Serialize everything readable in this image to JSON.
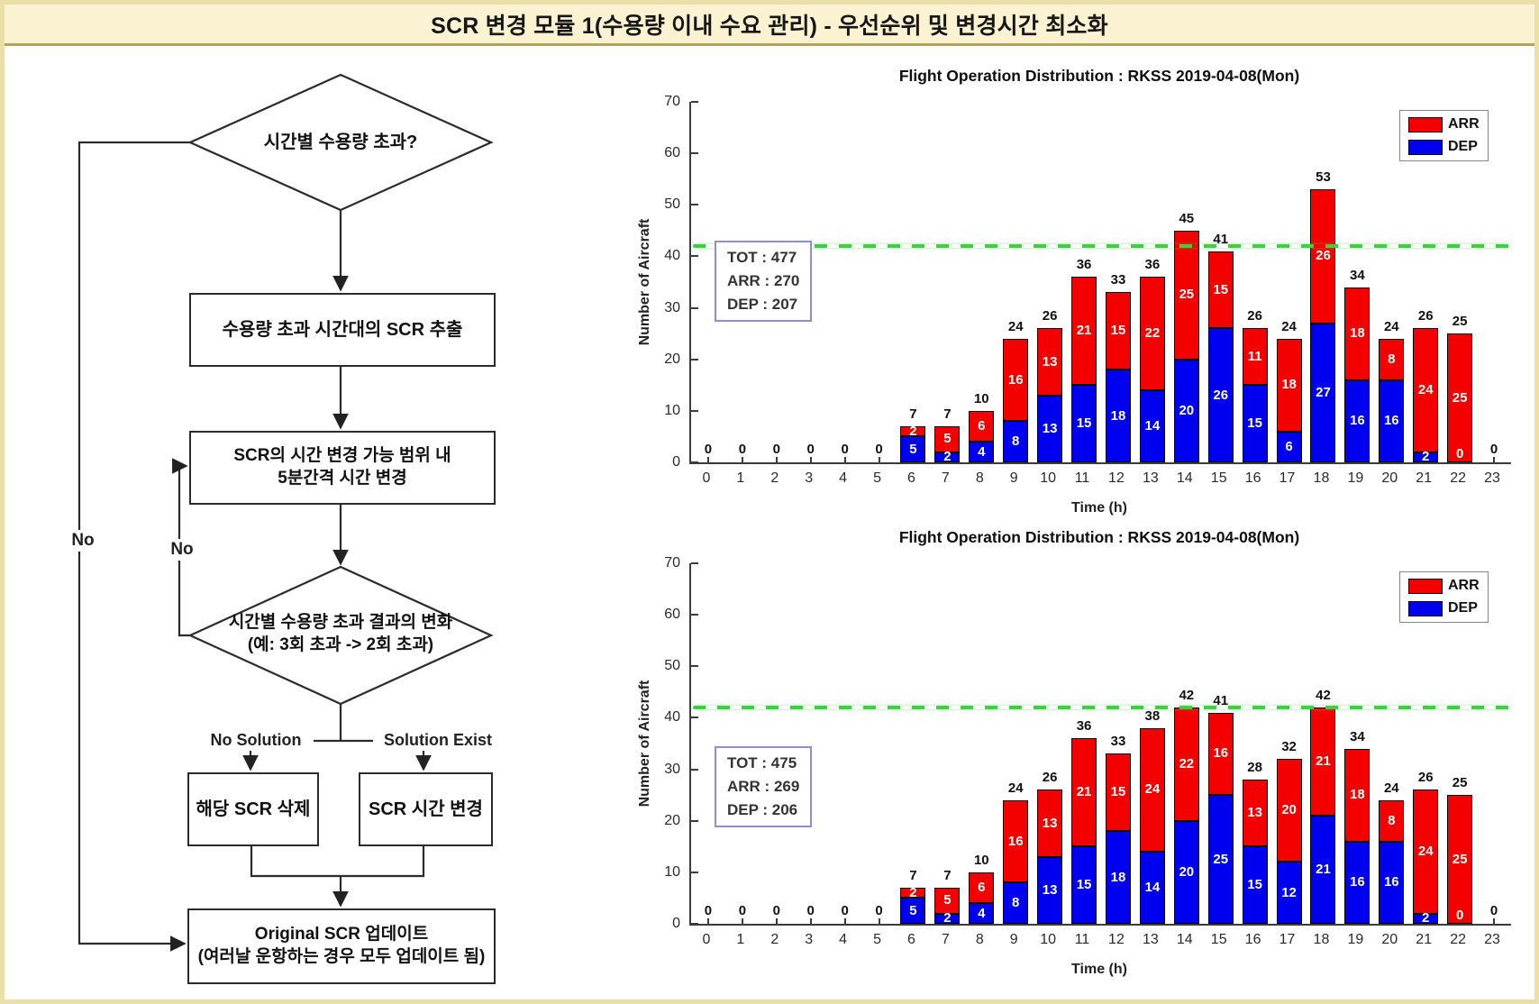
{
  "page": {
    "title": "SCR 변경 모듈 1(수용량 이내 수요 관리) - 우선순위 및 변경시간 최소화"
  },
  "flowchart": {
    "decision1": "시간별 수용량 초과?",
    "box_extract": "수용량 초과 시간대의 SCR 추출",
    "box_change_range_line1": "SCR의 시간 변경 가능 범위 내",
    "box_change_range_line2": "5분간격 시간 변경",
    "decision2_line1": "시간별 수용량 초과 결과의 변화",
    "decision2_line2": "(예: 3회 초과 -> 2회 초과)",
    "label_no_outer": "No",
    "label_no_inner": "No",
    "label_no_solution": "No Solution",
    "label_solution_exist": "Solution Exist",
    "box_delete": "해당 SCR 삭제",
    "box_time_change": "SCR 시간 변경",
    "box_update_line1": "Original SCR 업데이트",
    "box_update_line2": "(여러날 운항하는 경우 모두 업데이트 됨)"
  },
  "chart_data": [
    {
      "type": "bar",
      "stacked": true,
      "title": "Flight Operation Distribution : RKSS 2019-04-08(Mon)",
      "xlabel": "Time (h)",
      "ylabel": "Number of Aircraft",
      "ylim": [
        0,
        70
      ],
      "yticks": [
        0,
        10,
        20,
        30,
        40,
        50,
        60,
        70
      ],
      "grid": false,
      "categories": [
        "0",
        "1",
        "2",
        "3",
        "4",
        "5",
        "6",
        "7",
        "8",
        "9",
        "10",
        "11",
        "12",
        "13",
        "14",
        "15",
        "16",
        "17",
        "18",
        "19",
        "20",
        "21",
        "22",
        "23"
      ],
      "series": [
        {
          "name": "DEP",
          "color": "#0000f0",
          "values": [
            0,
            0,
            0,
            0,
            0,
            0,
            5,
            2,
            4,
            8,
            13,
            15,
            18,
            14,
            20,
            26,
            15,
            6,
            27,
            16,
            16,
            2,
            0,
            0
          ]
        },
        {
          "name": "ARR",
          "color": "#f40000",
          "values": [
            0,
            0,
            0,
            0,
            0,
            0,
            2,
            5,
            6,
            16,
            13,
            21,
            15,
            22,
            25,
            15,
            11,
            18,
            26,
            18,
            8,
            24,
            25,
            0
          ]
        }
      ],
      "totals": [
        0,
        0,
        0,
        0,
        0,
        0,
        7,
        7,
        10,
        24,
        26,
        36,
        33,
        36,
        45,
        41,
        26,
        24,
        53,
        34,
        24,
        26,
        25,
        0
      ],
      "capacity_line": {
        "value": 42,
        "color": "#3bd33b",
        "style": "dashed"
      },
      "legend": [
        {
          "label": "ARR",
          "color": "#f40000"
        },
        {
          "label": "DEP",
          "color": "#0000f0"
        }
      ],
      "legend_position": "top-right",
      "info_box": {
        "lines": [
          "TOT : 477",
          "ARR : 270",
          "DEP : 207"
        ],
        "y_value": 43
      }
    },
    {
      "type": "bar",
      "stacked": true,
      "title": "Flight Operation Distribution : RKSS 2019-04-08(Mon)",
      "xlabel": "Time (h)",
      "ylabel": "Number of Aircraft",
      "ylim": [
        0,
        70
      ],
      "yticks": [
        0,
        10,
        20,
        30,
        40,
        50,
        60,
        70
      ],
      "grid": false,
      "categories": [
        "0",
        "1",
        "2",
        "3",
        "4",
        "5",
        "6",
        "7",
        "8",
        "9",
        "10",
        "11",
        "12",
        "13",
        "14",
        "15",
        "16",
        "17",
        "18",
        "19",
        "20",
        "21",
        "22",
        "23"
      ],
      "series": [
        {
          "name": "DEP",
          "color": "#0000f0",
          "values": [
            0,
            0,
            0,
            0,
            0,
            0,
            5,
            2,
            4,
            8,
            13,
            15,
            18,
            14,
            20,
            25,
            15,
            12,
            21,
            16,
            16,
            2,
            0,
            0
          ]
        },
        {
          "name": "ARR",
          "color": "#f40000",
          "values": [
            0,
            0,
            0,
            0,
            0,
            0,
            2,
            5,
            6,
            16,
            13,
            21,
            15,
            24,
            22,
            16,
            13,
            20,
            21,
            18,
            8,
            24,
            25,
            0
          ]
        }
      ],
      "totals": [
        0,
        0,
        0,
        0,
        0,
        0,
        7,
        7,
        10,
        24,
        26,
        36,
        33,
        38,
        42,
        41,
        28,
        32,
        42,
        34,
        24,
        26,
        25,
        0
      ],
      "capacity_line": {
        "value": 42,
        "color": "#3bd33b",
        "style": "dashed"
      },
      "legend": [
        {
          "label": "ARR",
          "color": "#f40000"
        },
        {
          "label": "DEP",
          "color": "#0000f0"
        }
      ],
      "legend_position": "top-right",
      "info_box": {
        "lines": [
          "TOT : 475",
          "ARR : 269",
          "DEP : 206"
        ],
        "y_value": 34.5
      }
    }
  ]
}
